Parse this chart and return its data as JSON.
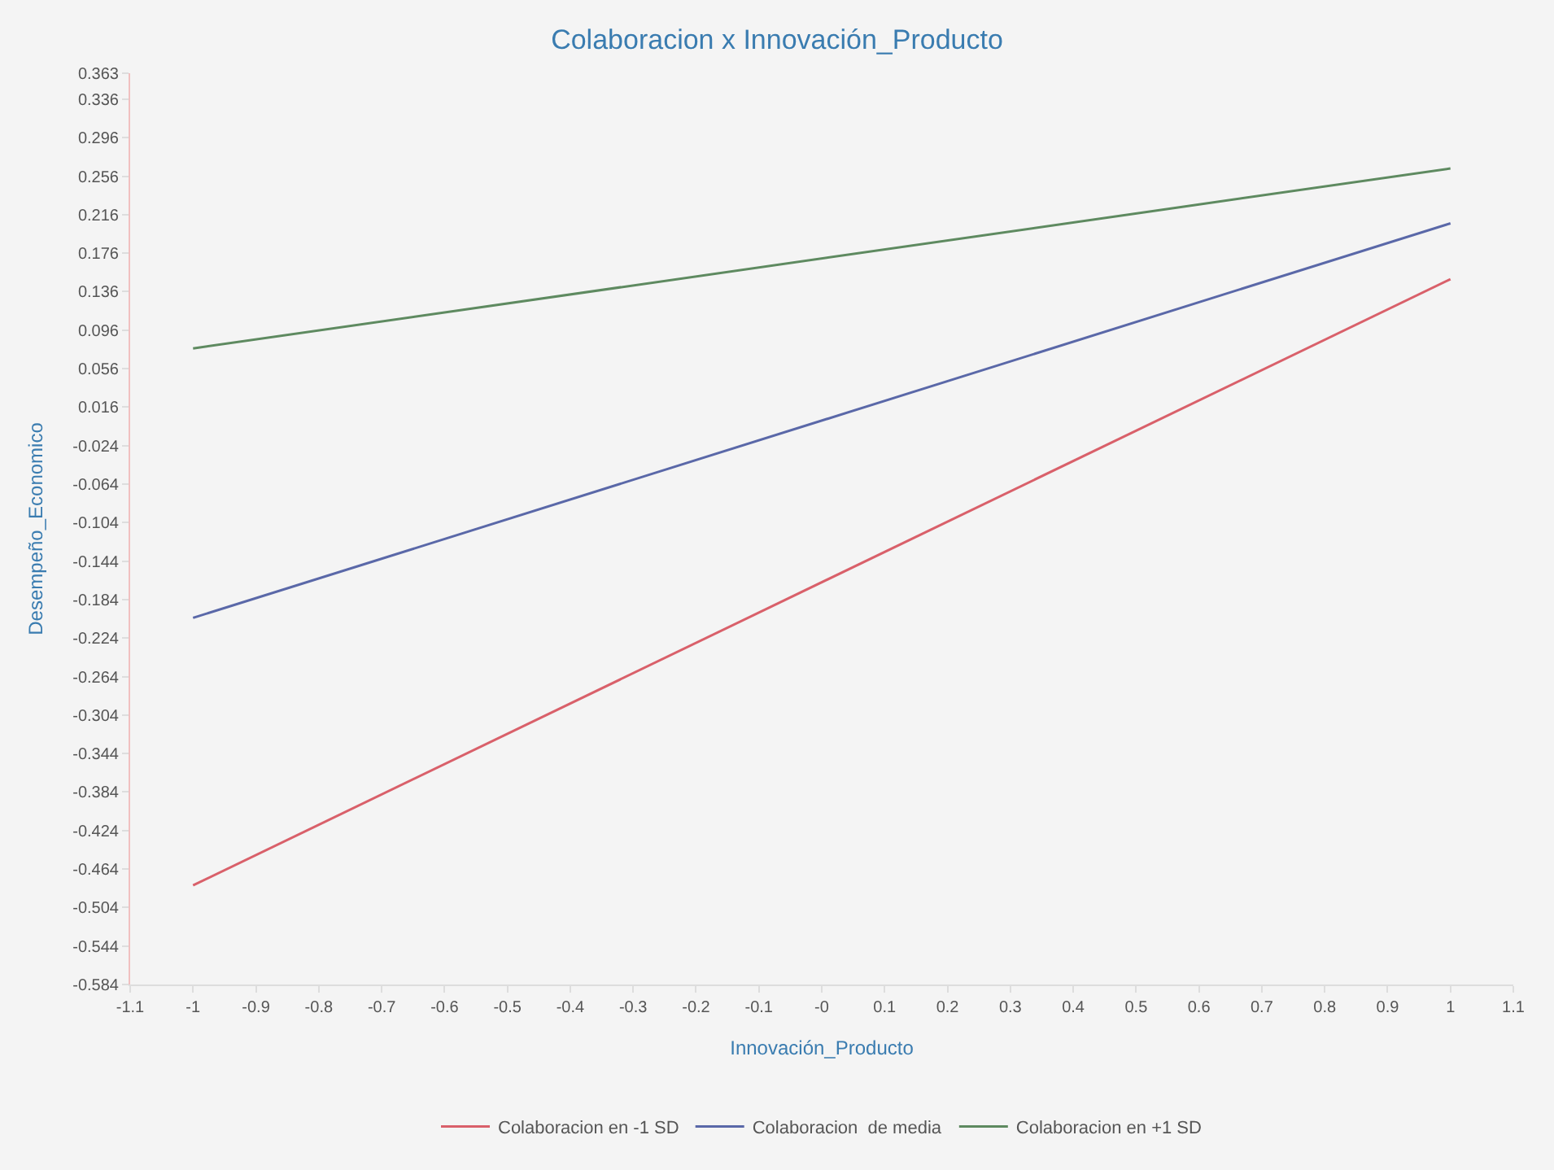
{
  "chart_data": {
    "type": "line",
    "title": "Colaboracion x Innovación_Producto",
    "xlabel": "Innovación_Producto",
    "ylabel": "Desempeño_Economico",
    "x": [
      -1,
      1
    ],
    "series": [
      {
        "name": "Colaboracion en -1 SD",
        "color": "#d9606a",
        "values": [
          -0.481,
          0.149
        ]
      },
      {
        "name": "Colaboracion  de media",
        "color": "#5a68a8",
        "values": [
          -0.203,
          0.207
        ]
      },
      {
        "name": "Colaboracion en +1 SD",
        "color": "#5e8a60",
        "values": [
          0.077,
          0.264
        ]
      }
    ],
    "xlim": [
      -1.1,
      1.1
    ],
    "xticks": [
      -1.1,
      -1,
      -0.9,
      -0.8,
      -0.7,
      -0.6,
      -0.5,
      -0.4,
      -0.3,
      -0.2,
      -0.1,
      {
        "value": 0,
        "label": "-0"
      },
      0.1,
      0.2,
      0.3,
      0.4,
      0.5,
      0.6,
      0.7,
      0.8,
      0.9,
      1,
      1.1
    ],
    "ylim": [
      -0.584,
      0.363
    ],
    "yticks": [
      -0.584,
      -0.544,
      -0.504,
      -0.464,
      -0.424,
      -0.384,
      -0.344,
      -0.304,
      -0.264,
      -0.224,
      -0.184,
      -0.144,
      -0.104,
      -0.064,
      -0.024,
      0.016,
      0.056,
      0.096,
      0.136,
      0.176,
      0.216,
      0.256,
      0.296,
      0.336,
      0.363
    ],
    "grid": false,
    "legend": "bottom",
    "marker": "none",
    "line_style": "solid"
  }
}
